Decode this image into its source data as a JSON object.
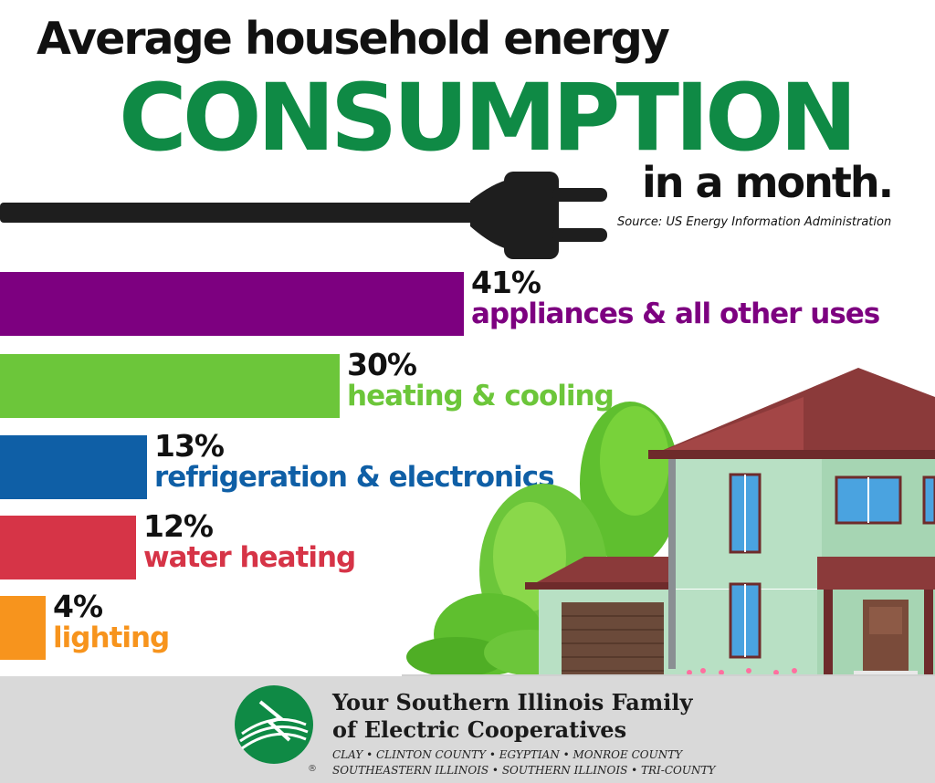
{
  "title": {
    "line1": "Average household energy",
    "line2": "CONSUMPTION",
    "line3": "in a month."
  },
  "source": "Source: US  Energy Information Administration",
  "colors": {
    "title_green": "#0f8a45",
    "appliances": "#7d0080",
    "heating": "#6cc63a",
    "refrigeration": "#0f5fa6",
    "water": "#d63447",
    "lighting": "#f7941d"
  },
  "chart_data": {
    "type": "bar",
    "orientation": "horizontal",
    "categories": [
      "appliances & all other uses",
      "heating & cooling",
      "refrigeration & electronics",
      "water heating",
      "lighting"
    ],
    "values": [
      41,
      30,
      13,
      12,
      4
    ],
    "labels": [
      "41%",
      "30%",
      "13%",
      "12%",
      "4%"
    ],
    "colors": [
      "#7d0080",
      "#6cc63a",
      "#0f5fa6",
      "#d63447",
      "#f7941d"
    ],
    "unit": "%"
  },
  "footer": {
    "org_line1": "Your Southern Illinois Family",
    "org_line2": "of Electric Cooperatives",
    "coops_line1": "CLAY • CLINTON COUNTY • EGYPTIAN • MONROE COUNTY",
    "coops_line2": "SOUTHEASTERN ILLINOIS • SOUTHERN ILLINOIS • TRI-COUNTY",
    "registered": "®"
  }
}
